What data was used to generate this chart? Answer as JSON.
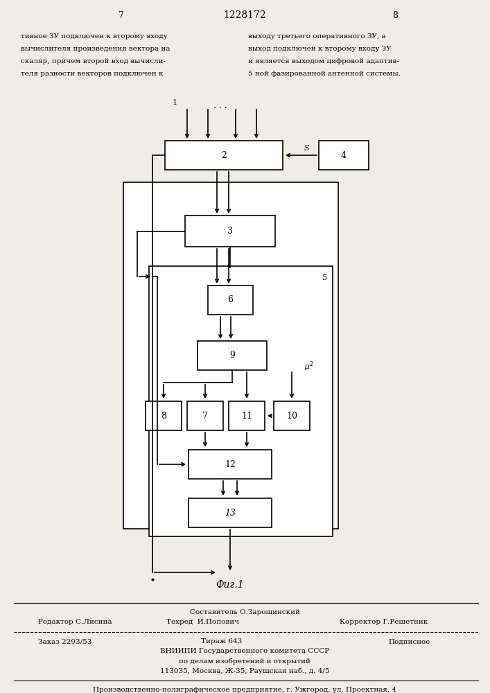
{
  "bg_color": "#f0ede8",
  "page_num_left": "7",
  "page_num_center": "1228172",
  "page_num_right": "8",
  "text_left": "тивное ЗУ подключен к второму входу\nвычислителя произведения вектора на\nскаляр, причем второй вход вычисли-\nтеля разности векторов подключен к",
  "text_right": "выходу третьего оперативного ЗУ, а\nвыход подключен к второму входу ЗУ\nи является выходом цифровой адаптив-\n5 ной фазированной антенной системы.",
  "fig_label": "Фиг.1",
  "footer_composer": "Составитель О.Зарощинский",
  "footer_editor": "Редактор С.Лисина",
  "footer_techred": "Техред  И.Попович",
  "footer_corrector": "Корректор Г.Решетник",
  "footer_order": "Заказ 2293/53",
  "footer_tirazh": "Тираж 643",
  "footer_podpisnoe": "Подписное",
  "footer_vniipи": "ВНИИПИ Государственного комитета СССР",
  "footer_po_delam": "по делам изобретений и открытий",
  "footer_address": "113035, Москва, Ж-35, Раушская наб., д. 4/5",
  "footer_factory": "Производственно-полиграфическое предприятие, г. Ужгород, ул. Проектная, 4"
}
